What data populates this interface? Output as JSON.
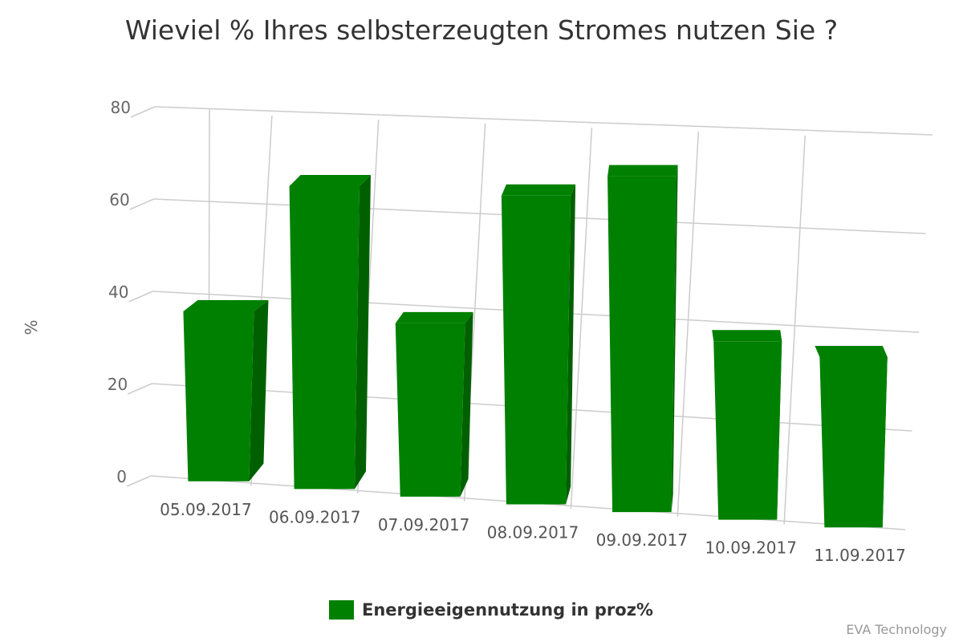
{
  "chart_data": {
    "type": "bar",
    "title": "Wieviel % Ihres selbsterzeugten Stromes nutzen Sie ?",
    "ylabel": "%",
    "ylim": [
      0,
      80
    ],
    "yticks": [
      "0",
      "20",
      "40",
      "60",
      "80"
    ],
    "categories": [
      "05.09.2017",
      "06.09.2017",
      "07.09.2017",
      "08.09.2017",
      "09.09.2017",
      "10.09.2017",
      "11.09.2017"
    ],
    "series": [
      {
        "name": "Energieeigennutzung in proz%",
        "values": [
          37,
          65,
          37,
          65,
          70,
          37,
          35
        ],
        "color": "#008000"
      }
    ],
    "grid": true,
    "legend_position": "bottom",
    "credits": "EVA Technology"
  }
}
